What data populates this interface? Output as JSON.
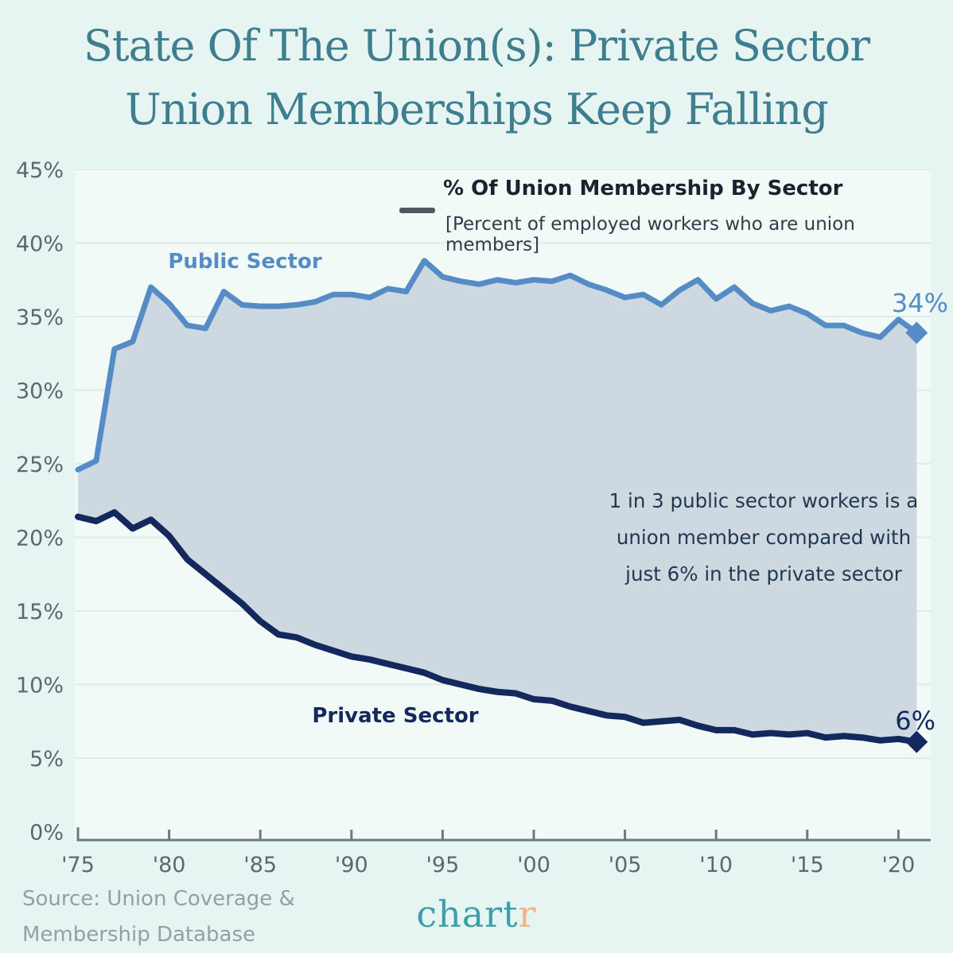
{
  "title": {
    "line1": "State Of The Union(s): Private Sector",
    "line2": "Union Memberships Keep Falling"
  },
  "legend": {
    "title": "% Of Union Membership By Sector",
    "subtitle": "[Percent of employed workers who are union members]"
  },
  "annotation": {
    "line1": "1 in 3 public sector workers is a",
    "line2": "union member compared with",
    "line3": "just 6% in the private sector"
  },
  "source": {
    "line1": "Source: Union Coverage &",
    "line2": "Membership Database"
  },
  "logo": {
    "part1": "chart",
    "part2": "r"
  },
  "colors": {
    "page_bg": "#e7f5f2",
    "plot_bg": "#f2faf7",
    "gridline": "#ddecea",
    "axis": "#6d797c",
    "tick_label": "#5a696d",
    "fill_between": "#cdd8e1",
    "public_line": "#568cc6",
    "private_line": "#13295e",
    "title_teal": "#3e7e8e",
    "logo_teal": "#3ba0a8",
    "logo_orange": "#f4b286"
  },
  "chart_data": {
    "type": "area",
    "title": "% Of Union Membership By Sector",
    "subtitle": "[Percent of employed workers who are union members]",
    "xlabel": "",
    "ylabel": "",
    "grid": true,
    "legend_position": "top",
    "ylim": [
      0,
      45
    ],
    "ytick_values": [
      0,
      5,
      10,
      15,
      20,
      25,
      30,
      35,
      40,
      45
    ],
    "ytick_labels": [
      "0%",
      "5%",
      "10%",
      "15%",
      "20%",
      "25%",
      "30%",
      "35%",
      "40%",
      "45%"
    ],
    "xticks": [
      1975,
      1980,
      1985,
      1990,
      1995,
      2000,
      2005,
      2010,
      2015,
      2020
    ],
    "xtick_labels": [
      "'75",
      "'80",
      "'85",
      "'90",
      "'95",
      "'00",
      "'05",
      "'10",
      "'15",
      "'20"
    ],
    "x": [
      1975,
      1976,
      1977,
      1978,
      1979,
      1980,
      1981,
      1982,
      1983,
      1984,
      1985,
      1986,
      1987,
      1988,
      1989,
      1990,
      1991,
      1992,
      1993,
      1994,
      1995,
      1996,
      1997,
      1998,
      1999,
      2000,
      2001,
      2002,
      2003,
      2004,
      2005,
      2006,
      2007,
      2008,
      2009,
      2010,
      2011,
      2012,
      2013,
      2014,
      2015,
      2016,
      2017,
      2018,
      2019,
      2020,
      2021
    ],
    "series": [
      {
        "name": "Public Sector",
        "color": "#568cc6",
        "end_label": "34%",
        "end_value": 34,
        "values": [
          24.6,
          25.2,
          32.8,
          33.3,
          37.0,
          35.9,
          34.4,
          34.2,
          36.7,
          35.8,
          35.7,
          35.7,
          35.8,
          36.0,
          36.5,
          36.5,
          36.3,
          36.9,
          36.7,
          38.8,
          37.7,
          37.4,
          37.2,
          37.5,
          37.3,
          37.5,
          37.4,
          37.8,
          37.2,
          36.8,
          36.3,
          36.5,
          35.8,
          36.8,
          37.5,
          36.2,
          37.0,
          35.9,
          35.4,
          35.7,
          35.2,
          34.4,
          34.4,
          33.9,
          33.6,
          34.8,
          33.9
        ]
      },
      {
        "name": "Private Sector",
        "color": "#13295e",
        "end_label": "6%",
        "end_value": 6,
        "values": [
          21.4,
          21.1,
          21.7,
          20.6,
          21.2,
          20.1,
          18.5,
          17.5,
          16.5,
          15.5,
          14.3,
          13.4,
          13.2,
          12.7,
          12.3,
          11.9,
          11.7,
          11.4,
          11.1,
          10.8,
          10.3,
          10.0,
          9.7,
          9.5,
          9.4,
          9.0,
          8.9,
          8.5,
          8.2,
          7.9,
          7.8,
          7.4,
          7.5,
          7.6,
          7.2,
          6.9,
          6.9,
          6.6,
          6.7,
          6.6,
          6.7,
          6.4,
          6.5,
          6.4,
          6.2,
          6.3,
          6.1
        ]
      }
    ]
  }
}
